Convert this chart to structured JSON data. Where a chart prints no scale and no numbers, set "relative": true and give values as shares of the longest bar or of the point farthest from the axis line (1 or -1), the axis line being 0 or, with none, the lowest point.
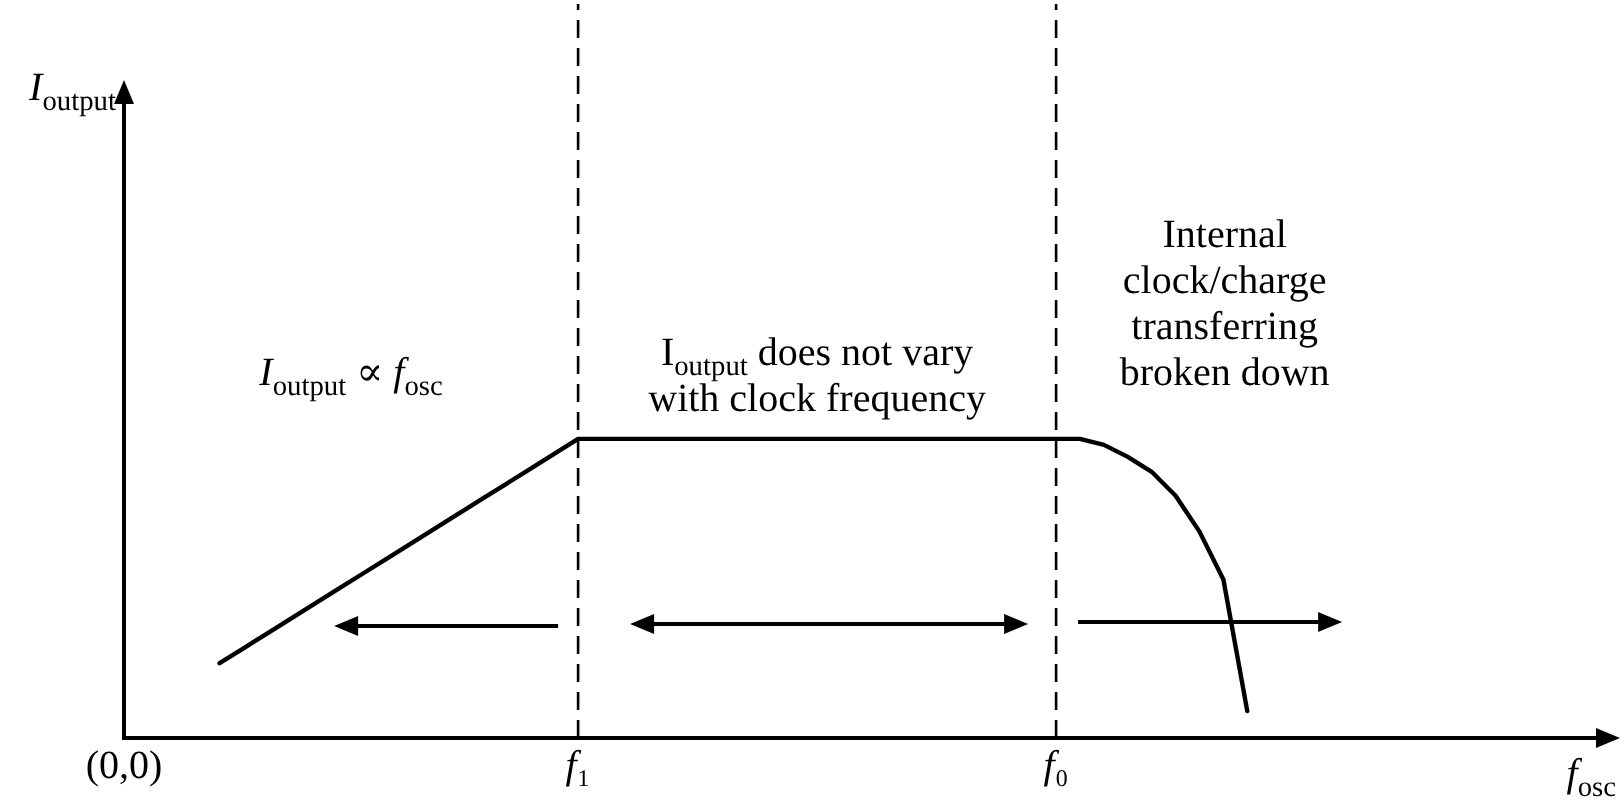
{
  "chart_data": {
    "type": "line",
    "relative": true,
    "categories": [
      "(0,0)",
      null,
      null,
      null,
      null,
      null,
      null,
      null,
      null,
      null,
      null,
      null,
      null,
      null,
      null,
      null,
      null,
      null,
      null,
      "f₁",
      null,
      null,
      null,
      null,
      null,
      null,
      null,
      null,
      null,
      null,
      null,
      null,
      null,
      null,
      null,
      null,
      null,
      null,
      null,
      "f₀",
      null,
      null,
      null,
      null,
      null,
      null,
      null,
      null
    ],
    "series": [
      {
        "color": "#000000",
        "values": [
          null,
          null,
          null,
          null,
          0.25,
          0.3,
          0.35,
          0.4,
          0.45,
          0.5,
          0.55,
          0.6,
          0.65,
          0.7,
          0.75,
          0.8,
          0.85,
          0.9,
          0.95,
          1,
          1,
          1,
          1,
          1,
          1,
          1,
          1,
          1,
          1,
          1,
          1,
          1,
          1,
          1,
          1,
          1,
          1,
          1,
          1,
          1,
          1,
          0.98,
          0.94,
          0.89,
          0.81,
          0.69,
          0.53,
          0.09
        ]
      }
    ],
    "ref_lines": [
      {
        "axis": "x",
        "value": "f₁",
        "line_style": "dashed",
        "color": "#000000"
      },
      {
        "axis": "x",
        "value": "f₀",
        "line_style": "dashed",
        "color": "#000000"
      }
    ],
    "annotations": [
      "I$_{output}$",
      "I$_{output}$ ∝ f$_{osc}$",
      "I$_{output}$ does not vary\nwith clock frequency",
      "Internal\nclock/charge\ntransferring\nbroken down",
      "f$_{osc}$"
    ],
    "line_style": "solid"
  }
}
